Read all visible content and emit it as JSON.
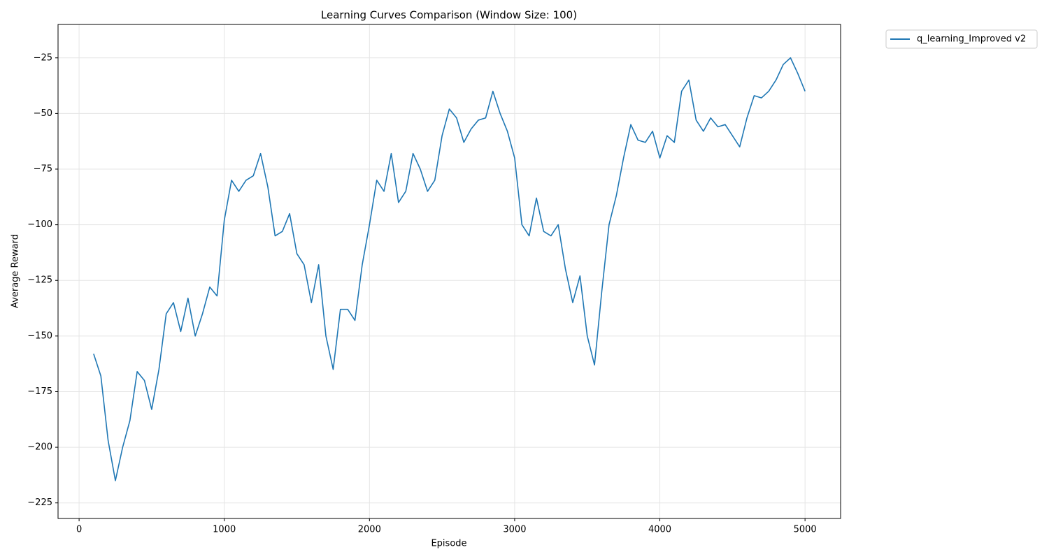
{
  "chart_data": {
    "type": "line",
    "title": "Learning Curves Comparison (Window Size: 100)",
    "x_label": "Episode",
    "y_label": "Average Reward",
    "x": [
      100,
      150,
      200,
      250,
      300,
      350,
      400,
      450,
      500,
      550,
      600,
      650,
      700,
      750,
      800,
      850,
      900,
      950,
      1000,
      1050,
      1100,
      1150,
      1200,
      1250,
      1300,
      1350,
      1400,
      1450,
      1500,
      1550,
      1600,
      1650,
      1700,
      1750,
      1800,
      1850,
      1900,
      1950,
      2000,
      2050,
      2100,
      2150,
      2200,
      2250,
      2300,
      2350,
      2400,
      2450,
      2500,
      2550,
      2600,
      2650,
      2700,
      2750,
      2800,
      2850,
      2900,
      2950,
      3000,
      3050,
      3100,
      3150,
      3200,
      3250,
      3300,
      3350,
      3400,
      3450,
      3500,
      3550,
      3600,
      3650,
      3700,
      3750,
      3800,
      3850,
      3900,
      3950,
      4000,
      4050,
      4100,
      4150,
      4200,
      4250,
      4300,
      4350,
      4400,
      4450,
      4500,
      4550,
      4600,
      4650,
      4700,
      4750,
      4800,
      4850,
      4900,
      4950,
      5000
    ],
    "series": [
      {
        "name": "q_learning_Improved v2",
        "color": "#1f77b4",
        "values": [
          -158,
          -168,
          -197,
          -215,
          -200,
          -188,
          -166,
          -170,
          -183,
          -165,
          -140,
          -135,
          -148,
          -133,
          -150,
          -140,
          -128,
          -132,
          -98,
          -80,
          -85,
          -80,
          -78,
          -68,
          -83,
          -105,
          -103,
          -95,
          -113,
          -118,
          -135,
          -118,
          -150,
          -165,
          -138,
          -138,
          -143,
          -118,
          -100,
          -80,
          -85,
          -68,
          -90,
          -85,
          -68,
          -75,
          -85,
          -80,
          -60,
          -48,
          -52,
          -63,
          -57,
          -53,
          -52,
          -40,
          -50,
          -58,
          -70,
          -100,
          -105,
          -88,
          -103,
          -105,
          -100,
          -120,
          -135,
          -123,
          -150,
          -163,
          -130,
          -100,
          -87,
          -70,
          -55,
          -62,
          -63,
          -58,
          -70,
          -60,
          -63,
          -40,
          -35,
          -53,
          -58,
          -52,
          -56,
          -55,
          -60,
          -65,
          -52,
          -42,
          -43,
          -40,
          -35,
          -28,
          -25,
          -32,
          -40
        ]
      }
    ],
    "xlim": [
      -145,
      5245
    ],
    "ylim": [
      -232,
      -10
    ],
    "xticks": [
      0,
      1000,
      2000,
      3000,
      4000,
      5000
    ],
    "yticks": [
      {
        "value": -225,
        "label": "−225"
      },
      {
        "value": -200,
        "label": "−200"
      },
      {
        "value": -175,
        "label": "−175"
      },
      {
        "value": -150,
        "label": "−150"
      },
      {
        "value": -125,
        "label": "−125"
      },
      {
        "value": -100,
        "label": "−100"
      },
      {
        "value": -75,
        "label": "−75"
      },
      {
        "value": -50,
        "label": "−50"
      },
      {
        "value": -25,
        "label": "−25"
      }
    ],
    "grid": true,
    "legend_position": "outside-upper-right"
  }
}
